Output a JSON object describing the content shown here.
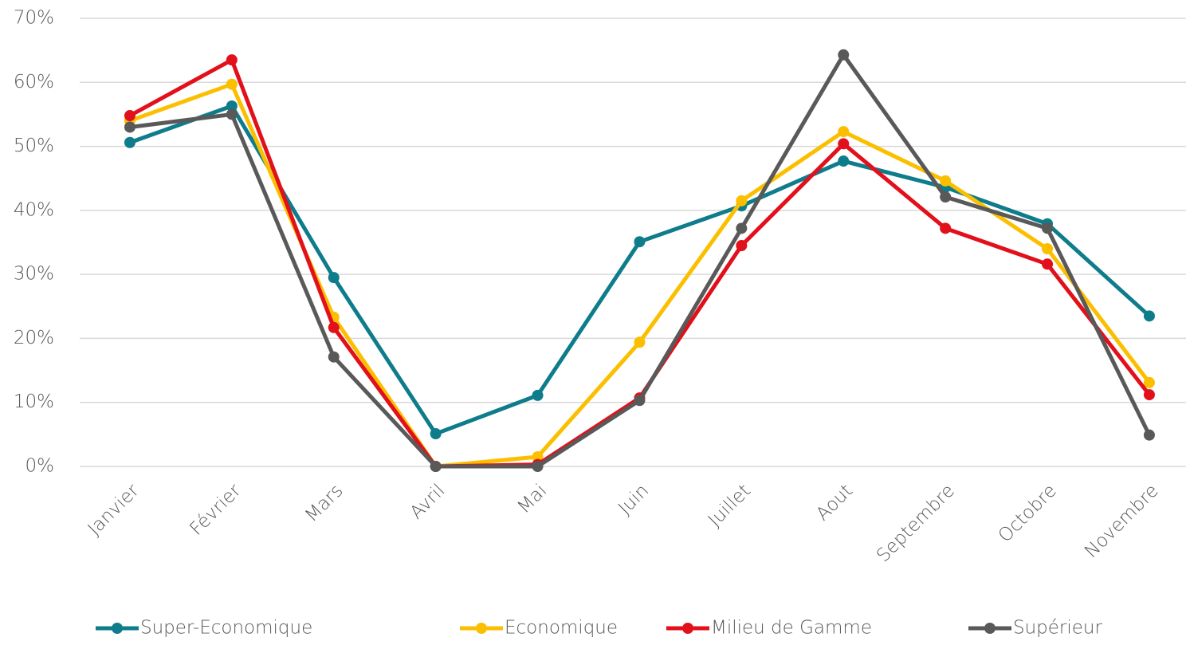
{
  "chart_data": {
    "type": "line",
    "categories": [
      "Janvier",
      "Février",
      "Mars",
      "Avril",
      "Mai",
      "Juin",
      "Juillet",
      "Aout",
      "Septembre",
      "Octobre",
      "Novembre"
    ],
    "series": [
      {
        "name": "Super-Economique",
        "color": "#0e7c8b",
        "values": [
          50.6,
          56.3,
          29.5,
          5.1,
          11.1,
          35.1,
          40.7,
          47.7,
          43.6,
          37.9,
          23.5
        ]
      },
      {
        "name": "Economique",
        "color": "#fbbf00",
        "values": [
          54.0,
          59.7,
          23.3,
          0,
          1.5,
          19.4,
          41.5,
          52.3,
          44.6,
          34.0,
          13.1
        ]
      },
      {
        "name": "Milieu de Gamme",
        "color": "#e2101a",
        "values": [
          54.8,
          63.5,
          21.7,
          0,
          0.3,
          10.7,
          34.5,
          50.4,
          37.2,
          31.6,
          11.2
        ]
      },
      {
        "name": "Supérieur",
        "color": "#595959",
        "values": [
          53.0,
          55.0,
          17.1,
          0,
          0,
          10.3,
          37.2,
          64.3,
          42.1,
          37.2,
          4.9
        ]
      }
    ],
    "ylim": [
      0,
      70
    ],
    "yticks": [
      {
        "value": 0,
        "label": "0%"
      },
      {
        "value": 10,
        "label": "10%"
      },
      {
        "value": 20,
        "label": "20%"
      },
      {
        "value": 30,
        "label": "30%"
      },
      {
        "value": 40,
        "label": "40%"
      },
      {
        "value": 50,
        "label": "50%"
      },
      {
        "value": 60,
        "label": "60%"
      },
      {
        "value": 70,
        "label": "70%"
      }
    ],
    "grid": true,
    "legend": "bottom"
  }
}
